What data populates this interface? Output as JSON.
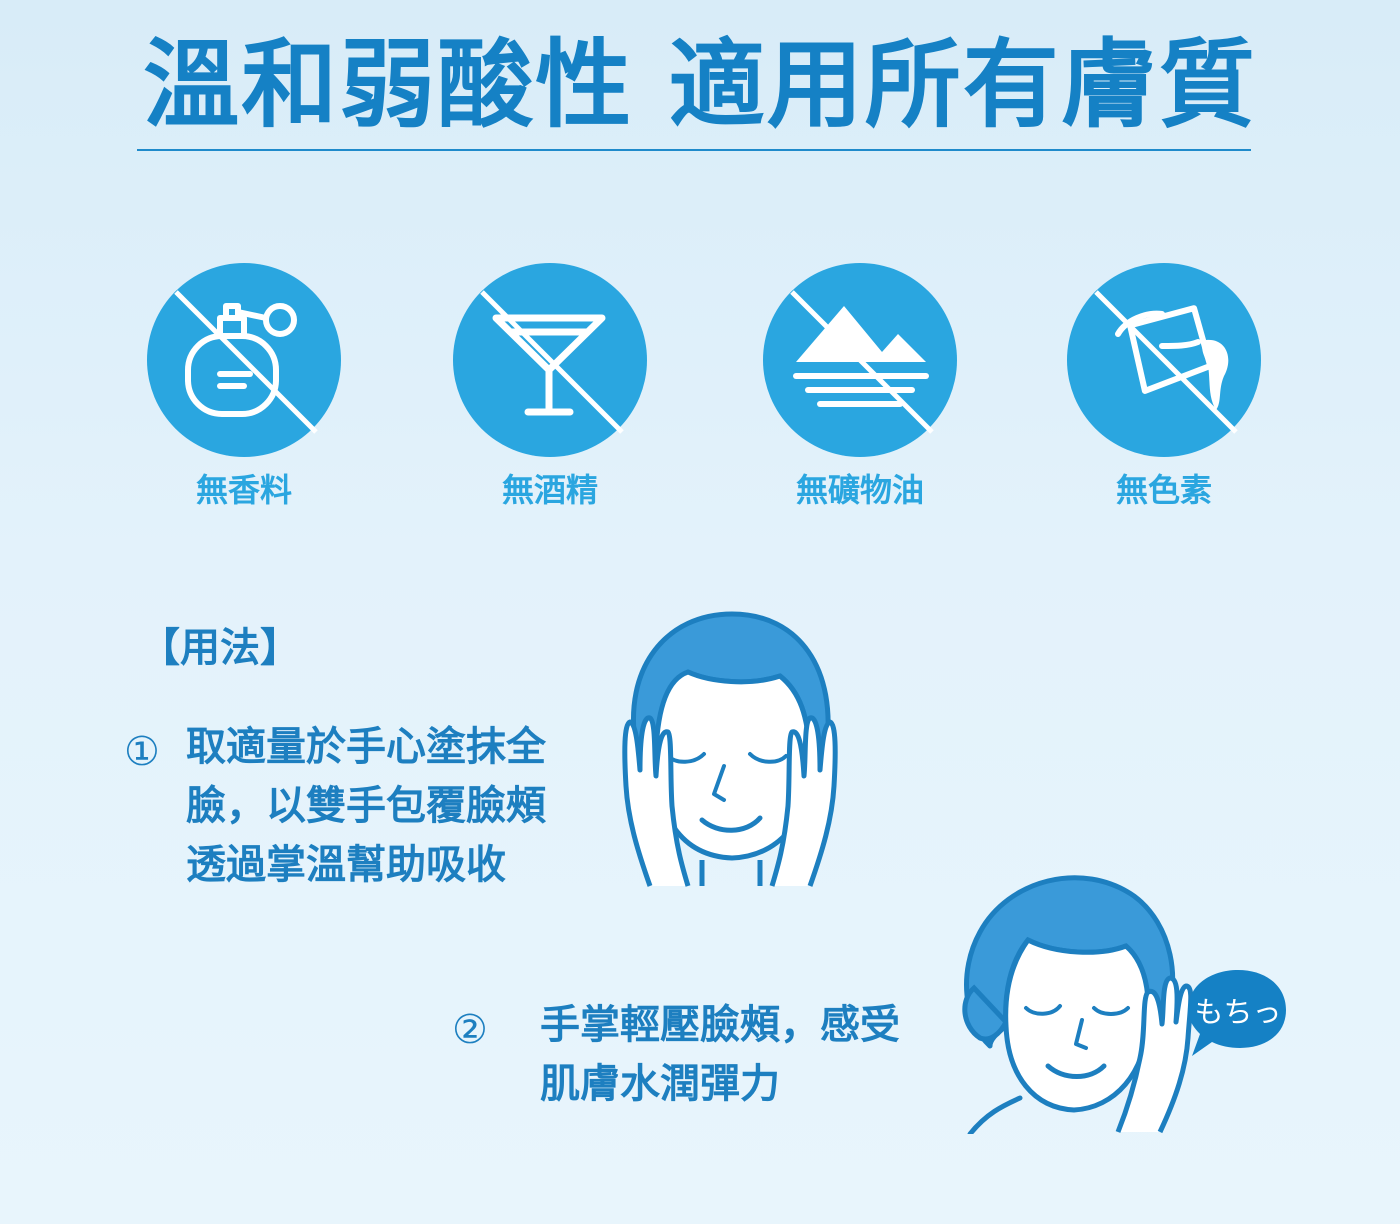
{
  "headline": "溫和弱酸性 適用所有膚質",
  "features": [
    {
      "label": "無香料",
      "icon": "no-perfume-icon"
    },
    {
      "label": "無酒精",
      "icon": "no-alcohol-icon"
    },
    {
      "label": "無礦物油",
      "icon": "no-mineral-oil-icon"
    },
    {
      "label": "無色素",
      "icon": "no-colorant-icon"
    }
  ],
  "colors": {
    "primary": "#1d7fc0",
    "icon_circle": "#2aa6e0",
    "label": "#2aa6e0",
    "hair": "#3a9ad9"
  },
  "usage": {
    "title": "【用法】",
    "steps": [
      {
        "number": "①",
        "lines": [
          "取適量於手心塗抹全",
          "臉，以雙手包覆臉頰",
          "透過掌溫幫助吸收"
        ]
      },
      {
        "number": "②",
        "lines": [
          "手掌輕壓臉頰，感受",
          "肌膚水潤彈力"
        ]
      }
    ],
    "bubble_text": "もちっ"
  }
}
